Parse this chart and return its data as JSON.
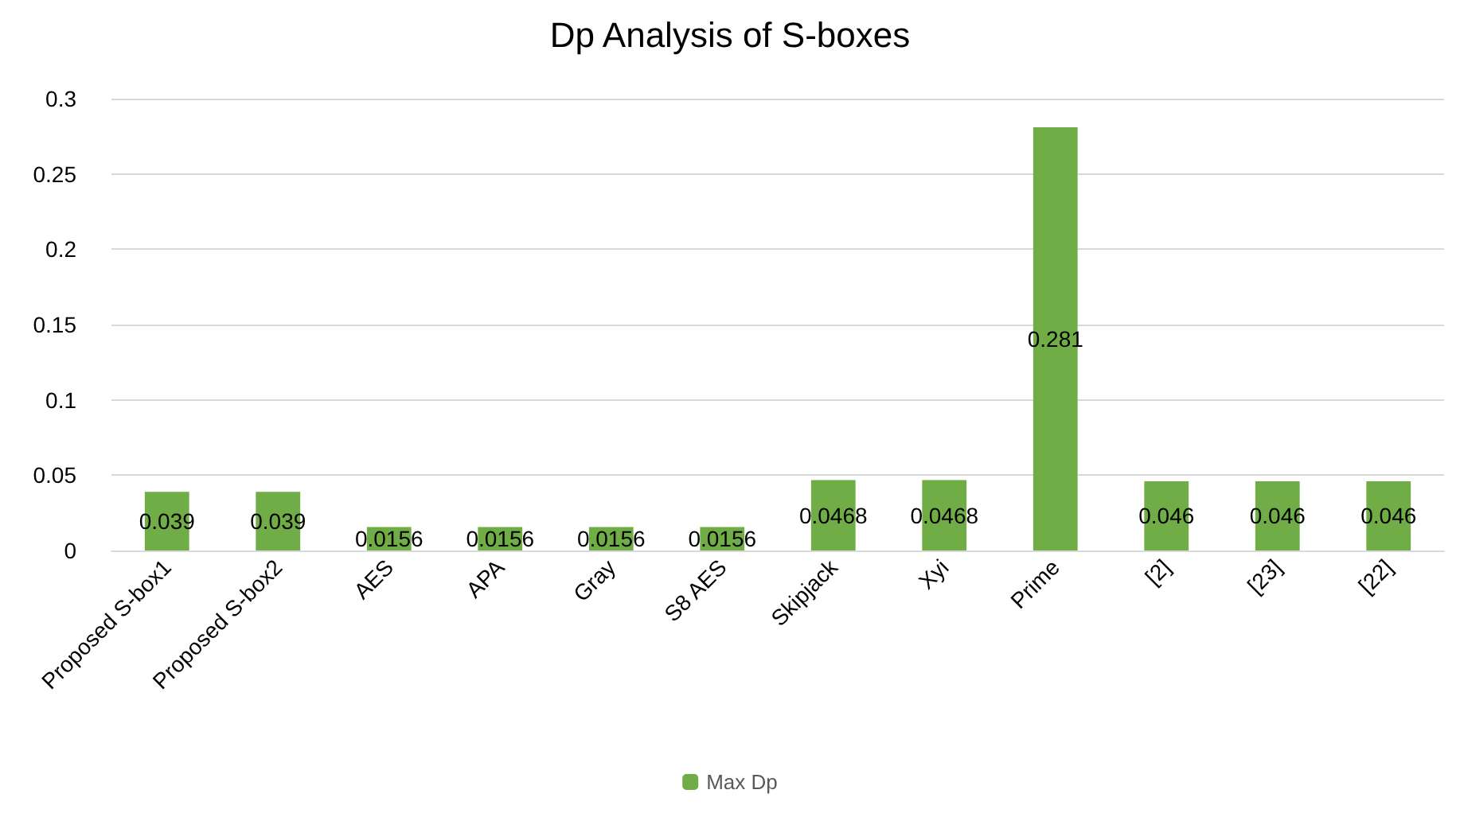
{
  "chart_data": {
    "type": "bar",
    "title": "Dp Analysis of S-boxes",
    "categories": [
      "Proposed S-box1",
      "Proposed S-box2",
      "AES",
      "APA",
      "Gray",
      "S8 AES",
      "Skipjack",
      "Xyi",
      "Prime",
      "[2]",
      "[23]",
      "[22]"
    ],
    "series": [
      {
        "name": "Max Dp",
        "color": "#70ad47",
        "values": [
          0.039,
          0.039,
          0.0156,
          0.0156,
          0.0156,
          0.0156,
          0.0468,
          0.0468,
          0.281,
          0.046,
          0.046,
          0.046
        ]
      }
    ],
    "ylim": [
      0,
      0.3
    ],
    "yticks": [
      0,
      0.05,
      0.1,
      0.15,
      0.2,
      0.25,
      0.3
    ],
    "grid": "y",
    "legend": "bottom",
    "data_labels": true
  }
}
